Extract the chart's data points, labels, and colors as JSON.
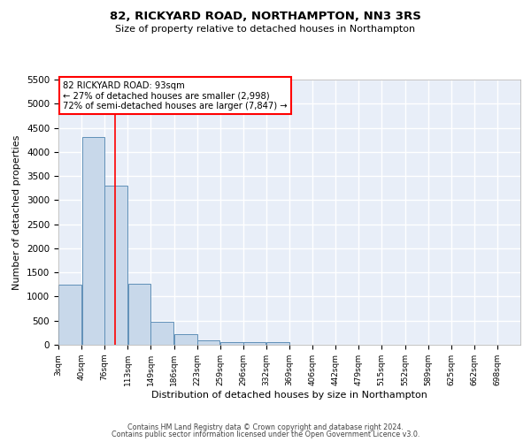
{
  "title": "82, RICKYARD ROAD, NORTHAMPTON, NN3 3RS",
  "subtitle": "Size of property relative to detached houses in Northampton",
  "xlabel": "Distribution of detached houses by size in Northampton",
  "ylabel": "Number of detached properties",
  "bar_color": "#c8d8ea",
  "bar_edge_color": "#6090b8",
  "background_color": "#e8eef8",
  "grid_color": "#ffffff",
  "red_line_x": 93,
  "annotation_title": "82 RICKYARD ROAD: 93sqm",
  "annotation_line1": "← 27% of detached houses are smaller (2,998)",
  "annotation_line2": "72% of semi-detached houses are larger (7,847) →",
  "bin_edges": [
    3,
    40,
    76,
    113,
    149,
    186,
    223,
    259,
    296,
    332,
    369,
    406,
    442,
    479,
    515,
    552,
    589,
    625,
    662,
    698,
    735
  ],
  "bar_heights": [
    1250,
    4300,
    3300,
    1270,
    480,
    220,
    85,
    55,
    55,
    55,
    0,
    0,
    0,
    0,
    0,
    0,
    0,
    0,
    0,
    0
  ],
  "ylim": [
    0,
    5500
  ],
  "yticks": [
    0,
    500,
    1000,
    1500,
    2000,
    2500,
    3000,
    3500,
    4000,
    4500,
    5000,
    5500
  ],
  "footer_line1": "Contains HM Land Registry data © Crown copyright and database right 2024.",
  "footer_line2": "Contains public sector information licensed under the Open Government Licence v3.0."
}
